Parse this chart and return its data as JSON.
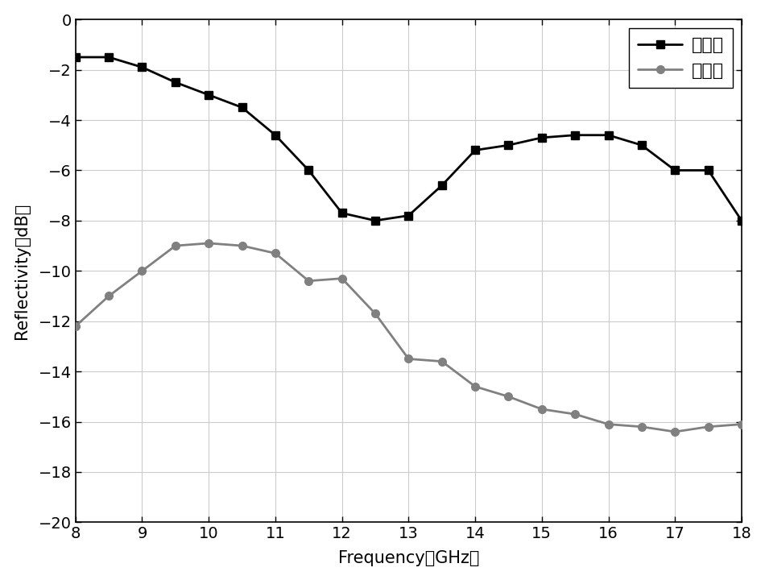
{
  "before_x": [
    8,
    8.5,
    9,
    9.5,
    10,
    10.5,
    11,
    11.5,
    12,
    12.5,
    13,
    13.5,
    14,
    14.5,
    15,
    15.5,
    16,
    16.5,
    17,
    17.5,
    18
  ],
  "before_y": [
    -1.5,
    -1.5,
    -1.9,
    -2.5,
    -3.0,
    -3.5,
    -4.6,
    -6.0,
    -7.7,
    -8.0,
    -7.8,
    -6.6,
    -5.2,
    -5.0,
    -4.7,
    -4.6,
    -4.6,
    -5.0,
    -6.0,
    -6.0,
    -8.0
  ],
  "after_x": [
    8,
    8.5,
    9,
    9.5,
    10,
    10.5,
    11,
    11.5,
    12,
    12.5,
    13,
    13.5,
    14,
    14.5,
    15,
    15.5,
    16,
    16.5,
    17,
    17.5,
    18
  ],
  "after_y": [
    -12.2,
    -11.0,
    -10.0,
    -9.0,
    -8.9,
    -9.0,
    -9.3,
    -10.4,
    -10.3,
    -11.7,
    -13.5,
    -13.6,
    -14.6,
    -15.0,
    -15.5,
    -15.7,
    -16.1,
    -16.2,
    -16.4,
    -16.2,
    -16.1
  ],
  "before_color": "#000000",
  "after_color": "#808080",
  "xlabel": "Frequency（GHz）",
  "ylabel": "Reflectivity（dB）",
  "xlim": [
    8,
    18
  ],
  "ylim": [
    -20,
    0
  ],
  "xticks": [
    8,
    9,
    10,
    11,
    12,
    13,
    14,
    15,
    16,
    17,
    18
  ],
  "yticks": [
    0,
    -2,
    -4,
    -6,
    -8,
    -10,
    -12,
    -14,
    -16,
    -18,
    -20
  ],
  "legend_before": "烧蛀前",
  "legend_after": "烧蛀后",
  "grid_color": "#cccccc",
  "background_color": "#ffffff",
  "line_width": 2.0,
  "marker_size": 7
}
